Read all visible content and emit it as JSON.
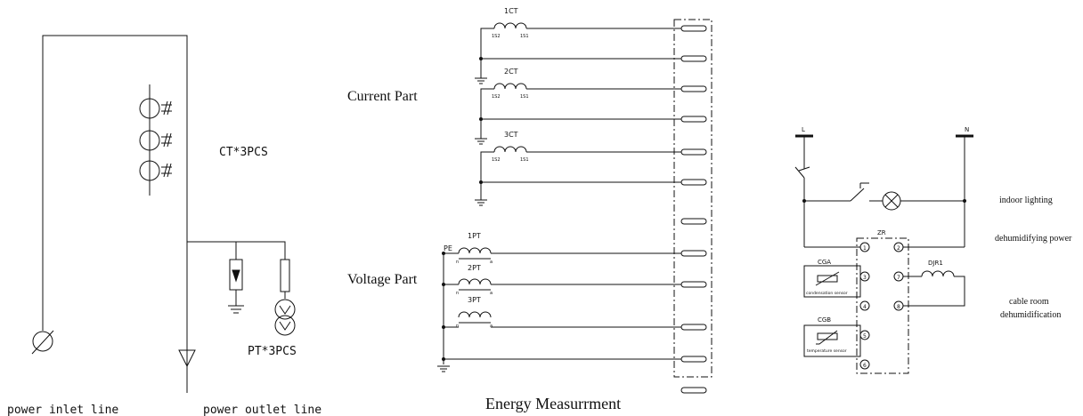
{
  "left_diagram": {
    "ct_label": "CT*3PCS",
    "pt_label": "PT*3PCS",
    "inlet_label": "power inlet line",
    "outlet_label": "power outlet line"
  },
  "energy": {
    "title": "Energy Measurrment",
    "current_part": "Current Part",
    "voltage_part": "Voltage Part",
    "ct_labels": [
      "1CT",
      "2CT",
      "3CT"
    ],
    "ct_terminal_left": "1S2",
    "ct_terminal_right": "1S1",
    "pt_labels": [
      "1PT",
      "2PT",
      "3PT"
    ],
    "pe_label": "PE",
    "pt_terminal_left": "n",
    "pt_terminal_right": "a"
  },
  "aux": {
    "L": "L",
    "N": "N",
    "zr": "ZR",
    "cga": "CGA",
    "cgb": "CGB",
    "djr1": "DJR1",
    "condensation": "condensation sensor",
    "temperature": "temperature sensor",
    "terminals": [
      "1",
      "2",
      "3",
      "7",
      "4",
      "8",
      "5",
      "6"
    ],
    "indoor_lighting": "indoor lighting",
    "dehumidifying_power": "dehumidifying power",
    "cable_room_1": "cable room",
    "cable_room_2": "dehumidification"
  },
  "colors": {
    "line": "#111111",
    "background": "#ffffff"
  }
}
